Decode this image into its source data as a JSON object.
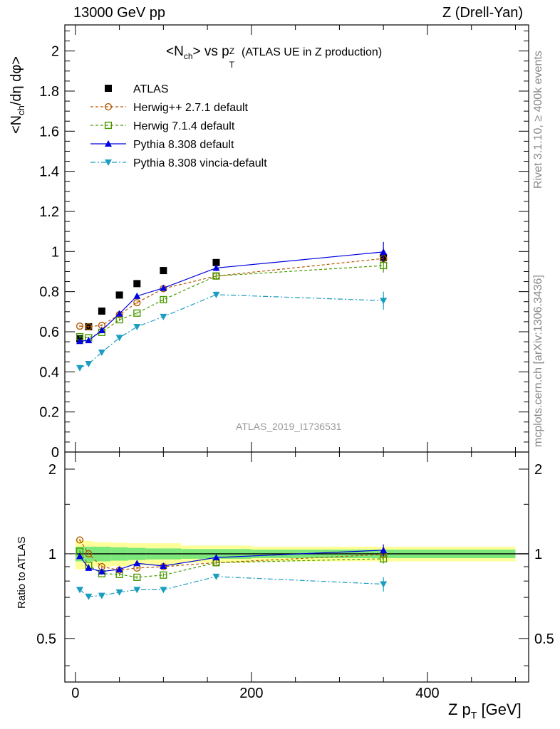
{
  "header": {
    "left": "13000 GeV pp",
    "right": "Z (Drell-Yan)"
  },
  "title": {
    "main": "<N",
    "main_sub": "ch",
    "main_mid": "> vs p",
    "main_sup": "Z",
    "main_sub2": "T",
    "note": "(ATLAS UE in Z production)"
  },
  "side_labels": {
    "rivet": "Rivet 3.1.10, ≥ 400k events",
    "mcplots": "mcplots.cern.ch [arXiv:1306.3436]"
  },
  "watermark": "ATLAS_2019_I1736531",
  "y_label_main": {
    "a": "<N",
    "sub": "ch",
    "b": "/dη dφ>"
  },
  "y_label_ratio": "Ratio to ATLAS",
  "x_label": {
    "a": "Z p",
    "sub": "T",
    "b": " [GeV]"
  },
  "colors": {
    "atlas": "#000000",
    "herwigpp": "#b35900",
    "herwig7": "#4a9a00",
    "pythia": "#0000e0",
    "vincia": "#1a9dc0",
    "band_inner": "#7ce87c",
    "band_outer": "#ffff99"
  },
  "chart_data": [
    {
      "type": "scatter",
      "panel": "main",
      "xlabel": "Z p_T [GeV]",
      "ylabel": "<N_ch/dη dφ>",
      "xlim": [
        -12,
        515
      ],
      "ylim": [
        0,
        2.13
      ],
      "x_ticks": [
        "0",
        "200",
        "400"
      ],
      "y_ticks": [
        "0",
        "0.2",
        "0.4",
        "0.6",
        "0.8",
        "1",
        "1.2",
        "1.4",
        "1.6",
        "1.8",
        "2"
      ],
      "x": [
        5,
        15,
        30,
        50,
        70,
        100,
        160,
        350
      ],
      "legend_position": "top-left",
      "series": [
        {
          "name": "ATLAS",
          "key": "atlas",
          "marker": "square-filled",
          "line": "none",
          "values": [
            0.565,
            0.625,
            0.703,
            0.783,
            0.84,
            0.905,
            0.945,
            0.97
          ],
          "errors": [
            0.005,
            0.005,
            0.005,
            0.005,
            0.006,
            0.006,
            0.008,
            0.015
          ]
        },
        {
          "name": "Herwig++ 2.7.1 default",
          "key": "herwigpp",
          "marker": "circle-open",
          "line": "dashed",
          "values": [
            0.628,
            0.625,
            0.632,
            0.685,
            0.745,
            0.815,
            0.878,
            0.965
          ],
          "errors": [
            0.005,
            0.005,
            0.005,
            0.006,
            0.007,
            0.01,
            0.015,
            0.03
          ]
        },
        {
          "name": "Herwig 7.1.4 default",
          "key": "herwig7",
          "marker": "square-open",
          "line": "dashed",
          "values": [
            0.575,
            0.57,
            0.597,
            0.66,
            0.693,
            0.76,
            0.878,
            0.93
          ],
          "errors": [
            0.005,
            0.005,
            0.005,
            0.006,
            0.007,
            0.012,
            0.015,
            0.035
          ]
        },
        {
          "name": "Pythia 8.308 default",
          "key": "pythia",
          "marker": "triangle-up",
          "line": "solid",
          "values": [
            0.553,
            0.557,
            0.607,
            0.69,
            0.778,
            0.818,
            0.918,
            0.998
          ],
          "errors": [
            0.005,
            0.005,
            0.005,
            0.006,
            0.007,
            0.012,
            0.015,
            0.05
          ]
        },
        {
          "name": "Pythia 8.308 vincia-default",
          "key": "vincia",
          "marker": "triangle-down",
          "line": "dashdot",
          "values": [
            0.42,
            0.44,
            0.497,
            0.57,
            0.625,
            0.675,
            0.785,
            0.755
          ],
          "errors": [
            0.005,
            0.005,
            0.005,
            0.006,
            0.007,
            0.01,
            0.015,
            0.045
          ]
        }
      ]
    },
    {
      "type": "scatter",
      "panel": "ratio",
      "ylabel": "Ratio to ATLAS",
      "xlim": [
        -12,
        515
      ],
      "ylim": [
        0.35,
        2.3
      ],
      "y_scale": "log",
      "y_ticks": [
        "0.5",
        "1",
        "2"
      ],
      "x": [
        5,
        15,
        30,
        50,
        70,
        100,
        160,
        350
      ],
      "band": {
        "x_edges": [
          0,
          10,
          20,
          40,
          60,
          80,
          120,
          200,
          500
        ],
        "inner": [
          0.06,
          0.06,
          0.06,
          0.055,
          0.05,
          0.045,
          0.04,
          0.035
        ],
        "outer": [
          0.12,
          0.11,
          0.1,
          0.095,
          0.09,
          0.09,
          0.07,
          0.06
        ]
      },
      "series": [
        {
          "key": "herwigpp",
          "marker": "circle-open",
          "line": "dashed",
          "values": [
            1.12,
            1.0,
            0.9,
            0.875,
            0.89,
            0.9,
            0.93,
            0.995
          ],
          "errors": [
            0.01,
            0.01,
            0.01,
            0.01,
            0.01,
            0.012,
            0.016,
            0.03
          ]
        },
        {
          "key": "herwig7",
          "marker": "square-open",
          "line": "dashed",
          "values": [
            1.02,
            0.91,
            0.85,
            0.845,
            0.825,
            0.84,
            0.93,
            0.96
          ],
          "errors": [
            0.01,
            0.01,
            0.01,
            0.01,
            0.01,
            0.013,
            0.016,
            0.036
          ]
        },
        {
          "key": "pythia",
          "marker": "triangle-up",
          "line": "solid",
          "values": [
            0.98,
            0.89,
            0.865,
            0.88,
            0.925,
            0.905,
            0.97,
            1.03
          ],
          "errors": [
            0.01,
            0.01,
            0.01,
            0.01,
            0.01,
            0.013,
            0.016,
            0.05
          ]
        },
        {
          "key": "vincia",
          "marker": "triangle-down",
          "line": "dashdot",
          "values": [
            0.745,
            0.705,
            0.71,
            0.73,
            0.745,
            0.745,
            0.83,
            0.78
          ],
          "errors": [
            0.008,
            0.008,
            0.008,
            0.008,
            0.009,
            0.011,
            0.016,
            0.046
          ]
        }
      ]
    }
  ]
}
